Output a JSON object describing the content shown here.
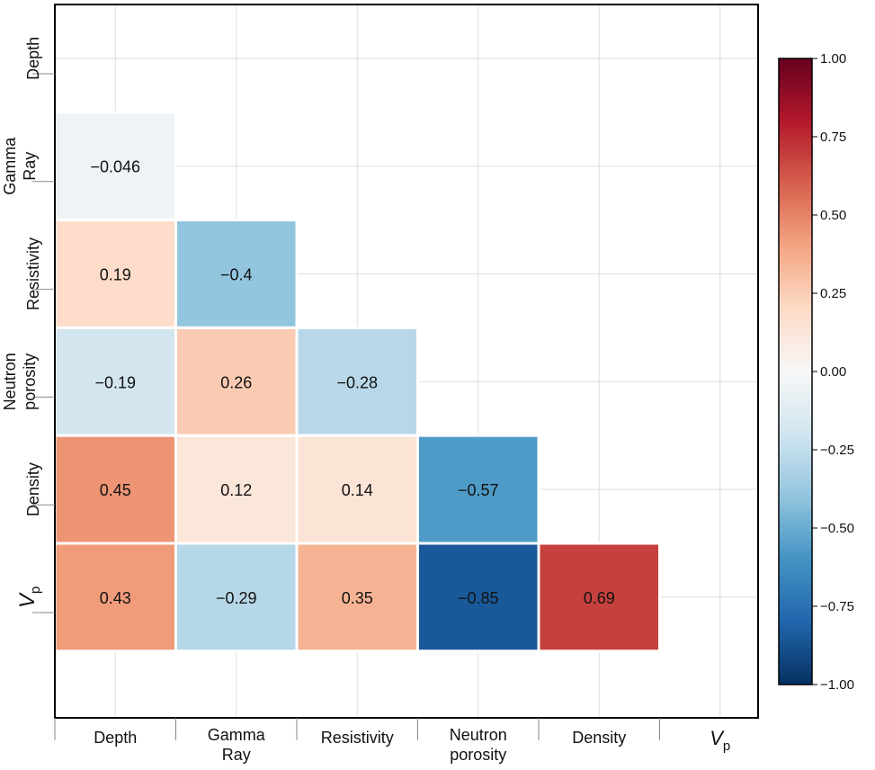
{
  "chart_data": {
    "type": "heatmap",
    "title": "",
    "variables": [
      "Depth",
      "Gamma Ray",
      "Resistivity",
      "Neutron porosity",
      "Density",
      "Vp"
    ],
    "x_tick_labels": [
      {
        "lines": [
          "Depth"
        ]
      },
      {
        "lines": [
          "Gamma",
          "Ray"
        ]
      },
      {
        "lines": [
          "Resistivity"
        ]
      },
      {
        "lines": [
          "Neutron",
          "porosity"
        ]
      },
      {
        "lines": [
          "Density"
        ]
      },
      {
        "main": "V",
        "sub": "p"
      }
    ],
    "y_tick_labels": [
      {
        "lines": [
          "Depth"
        ]
      },
      {
        "lines": [
          "Gamma",
          "Ray"
        ]
      },
      {
        "lines": [
          "Resistivity"
        ]
      },
      {
        "lines": [
          "Neutron",
          "porosity"
        ]
      },
      {
        "lines": [
          "Density"
        ]
      },
      {
        "main": "V",
        "sub": "p"
      }
    ],
    "mask": "upper-triangle-and-diagonal",
    "cells": [
      {
        "row": 1,
        "col": 0,
        "value": -0.046,
        "label": "−0.046"
      },
      {
        "row": 2,
        "col": 0,
        "value": 0.19,
        "label": "0.19"
      },
      {
        "row": 2,
        "col": 1,
        "value": -0.4,
        "label": "−0.4"
      },
      {
        "row": 3,
        "col": 0,
        "value": -0.19,
        "label": "−0.19"
      },
      {
        "row": 3,
        "col": 1,
        "value": 0.26,
        "label": "0.26"
      },
      {
        "row": 3,
        "col": 2,
        "value": -0.28,
        "label": "−0.28"
      },
      {
        "row": 4,
        "col": 0,
        "value": 0.45,
        "label": "0.45"
      },
      {
        "row": 4,
        "col": 1,
        "value": 0.12,
        "label": "0.12"
      },
      {
        "row": 4,
        "col": 2,
        "value": 0.14,
        "label": "0.14"
      },
      {
        "row": 4,
        "col": 3,
        "value": -0.57,
        "label": "−0.57"
      },
      {
        "row": 5,
        "col": 0,
        "value": 0.43,
        "label": "0.43"
      },
      {
        "row": 5,
        "col": 1,
        "value": -0.29,
        "label": "−0.29"
      },
      {
        "row": 5,
        "col": 2,
        "value": 0.35,
        "label": "0.35"
      },
      {
        "row": 5,
        "col": 3,
        "value": -0.85,
        "label": "−0.85"
      },
      {
        "row": 5,
        "col": 4,
        "value": 0.69,
        "label": "0.69"
      }
    ],
    "colorbar": {
      "colormap": "RdBu_r",
      "range": [
        -1.0,
        1.0
      ],
      "ticks": [
        {
          "value": 1.0,
          "label": "1.00"
        },
        {
          "value": 0.75,
          "label": "0.75"
        },
        {
          "value": 0.5,
          "label": "0.50"
        },
        {
          "value": 0.25,
          "label": "0.25"
        },
        {
          "value": 0.0,
          "label": "0.00"
        },
        {
          "value": -0.25,
          "label": "−0.25"
        },
        {
          "value": -0.5,
          "label": "−0.50"
        },
        {
          "value": -0.75,
          "label": "−0.75"
        },
        {
          "value": -1.0,
          "label": "−1.00"
        }
      ]
    },
    "colors": {
      "stops": [
        "#053061",
        "#2166ac",
        "#4393c3",
        "#92c5de",
        "#d1e5f0",
        "#f7f7f7",
        "#fddbc7",
        "#f4a582",
        "#d6604d",
        "#b2182b",
        "#67001f"
      ],
      "grid": "#dddddd",
      "frame": "#000000"
    },
    "grid": true
  }
}
